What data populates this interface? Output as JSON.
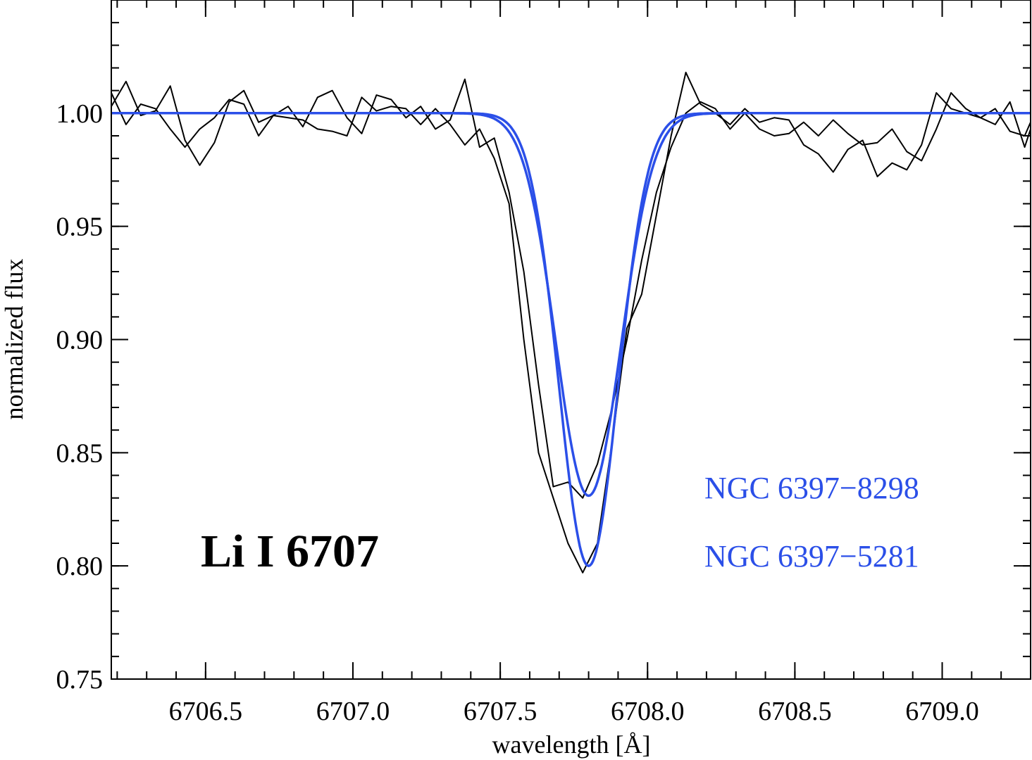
{
  "chart_data": {
    "type": "line",
    "title": "",
    "xlabel": "wavelength [Å]",
    "ylabel": "normalized flux",
    "xlim": [
      6706.18,
      6709.3
    ],
    "ylim": [
      0.75,
      1.05
    ],
    "x_ticks": [
      6706.5,
      6707.0,
      6707.5,
      6708.0,
      6708.5,
      6709.0
    ],
    "x_tick_labels": [
      "6706.5",
      "6707.0",
      "6707.5",
      "6708.0",
      "6708.5",
      "6709.0"
    ],
    "y_ticks": [
      0.75,
      0.8,
      0.85,
      0.9,
      0.95,
      1.0
    ],
    "y_tick_labels": [
      "0.75",
      "0.80",
      "0.85",
      "0.90",
      "0.95",
      "1.00"
    ],
    "x_minor_step": 0.1,
    "y_minor_step": 0.01,
    "grid": false,
    "annotation": "Li I 6707",
    "colors": {
      "observed": "#000000",
      "model": "#2b4fe8"
    },
    "legend": [
      {
        "label": "NGC 6397−8298",
        "color": "#2b4fe8"
      },
      {
        "label": "NGC 6397−5281",
        "color": "#2b4fe8"
      }
    ],
    "series": [
      {
        "role": "observed",
        "x": [
          6706.18,
          6706.23,
          6706.28,
          6706.33,
          6706.38,
          6706.43,
          6706.48,
          6706.53,
          6706.58,
          6706.63,
          6706.68,
          6706.73,
          6706.78,
          6706.83,
          6706.88,
          6706.93,
          6706.98,
          6707.03,
          6707.08,
          6707.13,
          6707.18,
          6707.23,
          6707.28,
          6707.33,
          6707.38,
          6707.43,
          6707.48,
          6707.53,
          6707.58,
          6707.63,
          6707.68,
          6707.73,
          6707.78,
          6707.83,
          6707.88,
          6707.93,
          6707.98,
          6708.03,
          6708.08,
          6708.13,
          6708.18,
          6708.23,
          6708.28,
          6708.33,
          6708.38,
          6708.43,
          6708.48,
          6708.53,
          6708.58,
          6708.63,
          6708.68,
          6708.73,
          6708.78,
          6708.83,
          6708.88,
          6708.93,
          6708.98,
          6709.03,
          6709.08,
          6709.13,
          6709.18,
          6709.23,
          6709.28,
          6709.3
        ],
        "y": [
          1.009,
          0.995,
          1.004,
          1.002,
          0.993,
          0.985,
          0.993,
          0.998,
          1.006,
          1.004,
          0.99,
          0.999,
          1.003,
          0.994,
          1.007,
          1.01,
          0.998,
          0.991,
          1.008,
          1.006,
          0.998,
          1.003,
          0.993,
          0.997,
          1.015,
          0.985,
          0.989,
          0.965,
          0.93,
          0.88,
          0.835,
          0.837,
          0.83,
          0.845,
          0.87,
          0.9,
          0.935,
          0.965,
          0.985,
          1.0,
          1.005,
          1.002,
          0.993,
          1.0,
          0.993,
          0.99,
          0.991,
          0.996,
          0.99,
          0.997,
          0.991,
          0.986,
          0.987,
          0.993,
          0.983,
          0.979,
          0.993,
          1.009,
          1.002,
          0.998,
          1.002,
          0.992,
          0.99,
          0.996
        ]
      },
      {
        "role": "observed",
        "x": [
          6706.18,
          6706.23,
          6706.28,
          6706.33,
          6706.38,
          6706.43,
          6706.48,
          6706.53,
          6706.58,
          6706.63,
          6706.68,
          6706.73,
          6706.78,
          6706.83,
          6706.88,
          6706.93,
          6706.98,
          6707.03,
          6707.08,
          6707.13,
          6707.18,
          6707.23,
          6707.28,
          6707.33,
          6707.38,
          6707.43,
          6707.48,
          6707.53,
          6707.58,
          6707.63,
          6707.68,
          6707.73,
          6707.78,
          6707.83,
          6707.88,
          6707.93,
          6707.98,
          6708.03,
          6708.08,
          6708.13,
          6708.18,
          6708.23,
          6708.28,
          6708.33,
          6708.38,
          6708.43,
          6708.48,
          6708.53,
          6708.58,
          6708.63,
          6708.68,
          6708.73,
          6708.78,
          6708.83,
          6708.88,
          6708.93,
          6708.98,
          6709.03,
          6709.08,
          6709.13,
          6709.18,
          6709.23,
          6709.28,
          6709.3
        ],
        "y": [
          1.003,
          1.014,
          0.999,
          1.001,
          1.012,
          0.988,
          0.977,
          0.987,
          1.005,
          1.01,
          0.996,
          0.999,
          0.998,
          0.997,
          0.993,
          0.992,
          0.99,
          1.007,
          1.001,
          1.003,
          1.002,
          0.995,
          1.002,
          0.995,
          0.986,
          0.993,
          0.98,
          0.96,
          0.9,
          0.85,
          0.83,
          0.81,
          0.797,
          0.81,
          0.855,
          0.905,
          0.92,
          0.955,
          0.99,
          1.018,
          1.004,
          1.0,
          0.995,
          1.002,
          0.996,
          0.998,
          0.997,
          0.986,
          0.982,
          0.974,
          0.984,
          0.988,
          0.972,
          0.978,
          0.975,
          0.986,
          1.009,
          1.002,
          1.0,
          0.998,
          0.995,
          1.005,
          0.985,
          0.993
        ]
      },
      {
        "role": "model",
        "name": "NGC 6397−8298",
        "continuum": 1.0,
        "center": 6707.8,
        "depth": 0.169,
        "sigma": 0.11,
        "color": "#2b4fe8"
      },
      {
        "role": "model",
        "name": "NGC 6397−5281",
        "continuum": 1.0,
        "center": 6707.8,
        "depth": 0.2,
        "sigma": 0.1,
        "color": "#2b4fe8"
      }
    ]
  }
}
